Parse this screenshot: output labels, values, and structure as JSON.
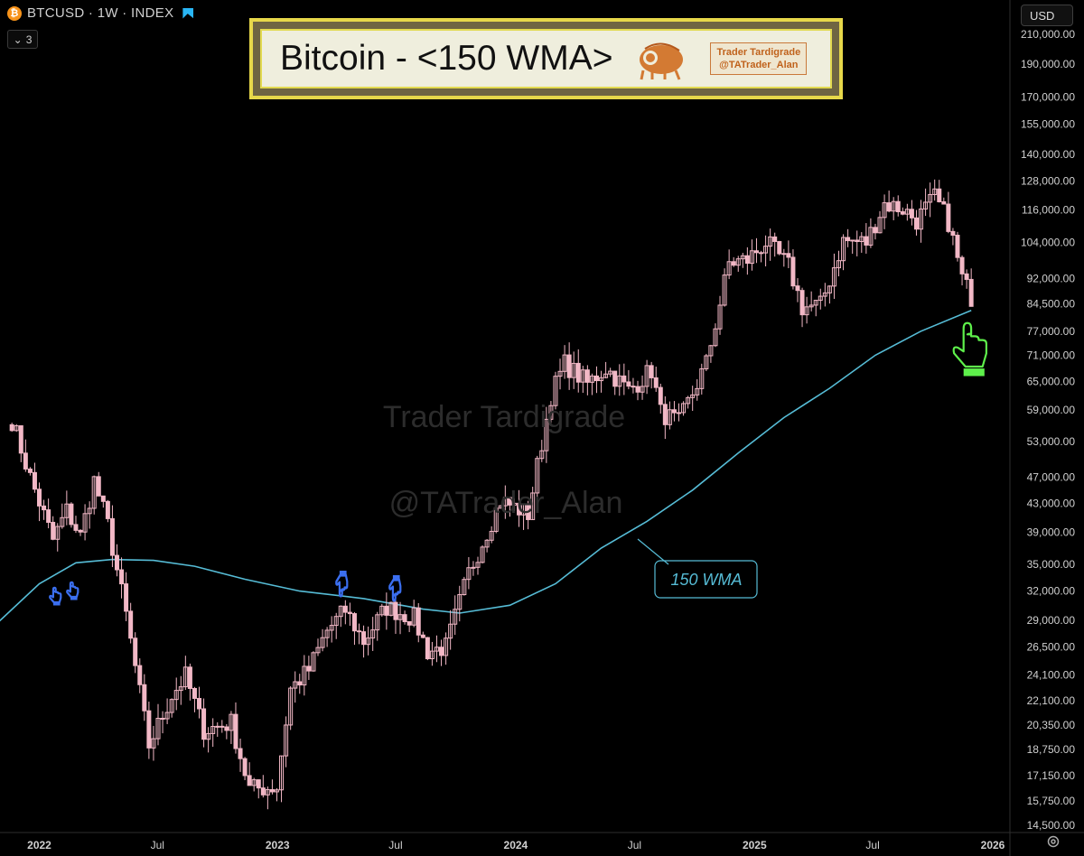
{
  "header": {
    "btc_glyph": "₿",
    "symbol_line": "BTCUSD · 1W · INDEX",
    "indicator_count": "3"
  },
  "currency_button": "USD",
  "title_box": {
    "title": "Bitcoin - <150 WMA>",
    "badge_line1": "Trader Tardigrade",
    "badge_line2": "@TATrader_Alan"
  },
  "watermark": {
    "line1": "Trader Tardigrade",
    "line2": "@TATrader_Alan"
  },
  "colors": {
    "background": "#000000",
    "candle": "#f2b8c6",
    "wma": "#56bcd6",
    "title_border": "#e7d84a",
    "highlight_hand": "#5ef04b",
    "small_hands": "#3b6ff0"
  },
  "icons": {
    "hand": "pointing-hand-icon",
    "settings": "gear-icon",
    "dropdown": "chevron-down-icon",
    "flag": "flag-icon"
  },
  "chart_data": {
    "type": "candlestick",
    "timeframe": "1W",
    "scale": "log",
    "ylim": [
      14500,
      210000
    ],
    "y_tick_labels": [
      "210,000.00",
      "190,000.00",
      "170,000.00",
      "155,000.00",
      "140,000.00",
      "128,000.00",
      "116,000.00",
      "104,000.00",
      "92,000.00",
      "84,500.00",
      "77,000.00",
      "71,000.00",
      "65,000.00",
      "59,000.00",
      "53,000.00",
      "47,000.00",
      "43,000.00",
      "39,000.00",
      "35,000.00",
      "32,000.00",
      "29,000.00",
      "26,500.00",
      "24,100.00",
      "22,100.00",
      "20,350.00",
      "18,750.00",
      "17,150.00",
      "15,750.00",
      "14,500.00"
    ],
    "x_tick_labels": [
      "2022",
      "Jul",
      "2023",
      "Jul",
      "2024",
      "Jul",
      "2025",
      "Jul",
      "2026"
    ],
    "x_tick_dates": [
      "2022-01-01",
      "2022-07-01",
      "2023-01-01",
      "2023-07-01",
      "2024-01-01",
      "2024-07-01",
      "2025-01-01",
      "2025-07-01",
      "2026-01-01"
    ],
    "series": [
      {
        "name": "BTCUSD",
        "anchors": [
          [
            "2021-11-20",
            57000
          ],
          [
            "2021-12-18",
            47000
          ],
          [
            "2022-01-22",
            38000
          ],
          [
            "2022-02-12",
            42000
          ],
          [
            "2022-03-05",
            38500
          ],
          [
            "2022-03-26",
            46500
          ],
          [
            "2022-04-16",
            40000
          ],
          [
            "2022-05-14",
            29500
          ],
          [
            "2022-06-18",
            19000
          ],
          [
            "2022-07-23",
            22500
          ],
          [
            "2022-08-13",
            24000
          ],
          [
            "2022-09-10",
            20000
          ],
          [
            "2022-10-22",
            20500
          ],
          [
            "2022-11-19",
            16400
          ],
          [
            "2022-12-31",
            16500
          ],
          [
            "2023-01-21",
            23000
          ],
          [
            "2023-02-18",
            24500
          ],
          [
            "2023-03-18",
            28000
          ],
          [
            "2023-04-15",
            30000
          ],
          [
            "2023-05-13",
            27000
          ],
          [
            "2023-06-17",
            30300
          ],
          [
            "2023-07-29",
            29200
          ],
          [
            "2023-08-19",
            26100
          ],
          [
            "2023-09-16",
            26500
          ],
          [
            "2023-10-21",
            34000
          ],
          [
            "2023-12-09",
            43500
          ],
          [
            "2024-01-20",
            41500
          ],
          [
            "2024-02-24",
            62000
          ],
          [
            "2024-03-16",
            69000
          ],
          [
            "2024-04-20",
            64500
          ],
          [
            "2024-05-18",
            68000
          ],
          [
            "2024-06-22",
            63000
          ],
          [
            "2024-07-27",
            67500
          ],
          [
            "2024-08-10",
            58500
          ],
          [
            "2024-09-07",
            56500
          ],
          [
            "2024-10-19",
            69000
          ],
          [
            "2024-11-23",
            97000
          ],
          [
            "2024-12-21",
            98000
          ],
          [
            "2025-01-18",
            104000
          ],
          [
            "2025-02-22",
            96000
          ],
          [
            "2025-03-15",
            83500
          ],
          [
            "2025-04-12",
            84000
          ],
          [
            "2025-05-17",
            104500
          ],
          [
            "2025-06-21",
            104000
          ],
          [
            "2025-07-19",
            118500
          ],
          [
            "2025-08-16",
            116500
          ],
          [
            "2025-09-06",
            112000
          ],
          [
            "2025-10-04",
            121000
          ],
          [
            "2025-10-25",
            111500
          ],
          [
            "2025-11-15",
            92000
          ],
          [
            "2025-11-29",
            86500
          ]
        ]
      },
      {
        "name": "150 WMA",
        "points": [
          [
            "2021-10-30",
            28800
          ],
          [
            "2022-01-01",
            32800
          ],
          [
            "2022-02-26",
            35200
          ],
          [
            "2022-04-23",
            35600
          ],
          [
            "2022-06-25",
            35500
          ],
          [
            "2022-08-27",
            34800
          ],
          [
            "2022-11-12",
            33300
          ],
          [
            "2023-02-04",
            32000
          ],
          [
            "2023-05-13",
            31200
          ],
          [
            "2023-08-12",
            30100
          ],
          [
            "2023-10-07",
            29700
          ],
          [
            "2023-12-23",
            30500
          ],
          [
            "2024-03-02",
            32800
          ],
          [
            "2024-05-11",
            37000
          ],
          [
            "2024-07-20",
            40500
          ],
          [
            "2024-09-28",
            45000
          ],
          [
            "2024-12-07",
            51000
          ],
          [
            "2025-02-15",
            57500
          ],
          [
            "2025-04-26",
            63500
          ],
          [
            "2025-07-05",
            71000
          ],
          [
            "2025-09-13",
            77000
          ],
          [
            "2025-11-29",
            82600
          ]
        ]
      }
    ],
    "annotations": [
      {
        "text": "150 WMA"
      }
    ]
  }
}
